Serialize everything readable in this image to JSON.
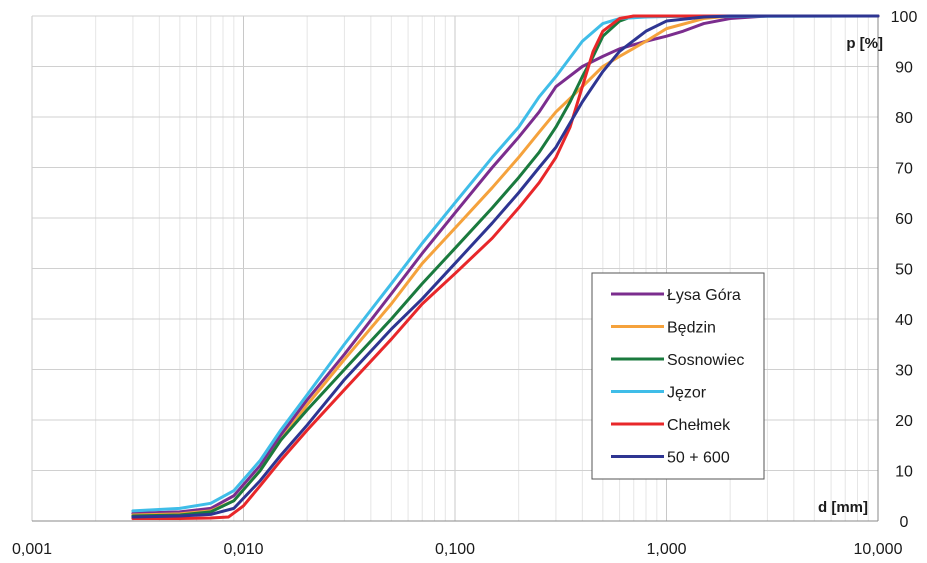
{
  "chart_data": {
    "type": "line",
    "x_scale": "log",
    "xlim": [
      0.001,
      10
    ],
    "ylim": [
      0,
      100
    ],
    "xlabel": "d [mm]",
    "ylabel": "p [%]",
    "x_ticks": [
      {
        "value": 0.001,
        "label": "0,001"
      },
      {
        "value": 0.01,
        "label": "0,010"
      },
      {
        "value": 0.1,
        "label": "0,100"
      },
      {
        "value": 1,
        "label": "1,000"
      },
      {
        "value": 10,
        "label": "10,000"
      }
    ],
    "y_ticks": [
      0,
      10,
      20,
      30,
      40,
      50,
      60,
      70,
      80,
      90,
      100
    ],
    "grid": {
      "y_major": true,
      "x_major": true,
      "x_minor": true
    },
    "legend_position": "right-lower",
    "series": [
      {
        "name": "Łysa Góra",
        "color": "#7b2d8e",
        "points": [
          [
            0.003,
            1.5
          ],
          [
            0.005,
            1.8
          ],
          [
            0.007,
            2.5
          ],
          [
            0.009,
            5
          ],
          [
            0.012,
            11
          ],
          [
            0.015,
            17
          ],
          [
            0.02,
            24
          ],
          [
            0.03,
            33
          ],
          [
            0.05,
            45
          ],
          [
            0.07,
            53
          ],
          [
            0.1,
            61
          ],
          [
            0.15,
            70
          ],
          [
            0.2,
            76
          ],
          [
            0.25,
            81
          ],
          [
            0.3,
            86
          ],
          [
            0.4,
            90
          ],
          [
            0.5,
            92
          ],
          [
            0.6,
            93.5
          ],
          [
            0.8,
            95
          ],
          [
            1.0,
            96
          ],
          [
            1.2,
            97
          ],
          [
            1.5,
            98.5
          ],
          [
            2.0,
            99.5
          ],
          [
            3.0,
            100
          ],
          [
            10,
            100
          ]
        ]
      },
      {
        "name": "Będzin",
        "color": "#f5a23c",
        "points": [
          [
            0.003,
            1.2
          ],
          [
            0.005,
            1.4
          ],
          [
            0.007,
            2
          ],
          [
            0.009,
            4
          ],
          [
            0.012,
            10
          ],
          [
            0.015,
            16
          ],
          [
            0.02,
            23
          ],
          [
            0.03,
            32
          ],
          [
            0.05,
            43
          ],
          [
            0.07,
            51
          ],
          [
            0.1,
            58
          ],
          [
            0.15,
            66
          ],
          [
            0.2,
            72
          ],
          [
            0.25,
            77
          ],
          [
            0.3,
            81
          ],
          [
            0.4,
            86
          ],
          [
            0.5,
            90
          ],
          [
            0.6,
            92
          ],
          [
            0.8,
            95
          ],
          [
            1.0,
            97.5
          ],
          [
            1.5,
            99.5
          ],
          [
            2.0,
            100
          ],
          [
            10,
            100
          ]
        ]
      },
      {
        "name": "Sosnowiec",
        "color": "#1a7a3e",
        "points": [
          [
            0.003,
            1
          ],
          [
            0.005,
            1.2
          ],
          [
            0.007,
            1.8
          ],
          [
            0.009,
            4
          ],
          [
            0.012,
            10
          ],
          [
            0.015,
            16
          ],
          [
            0.02,
            22
          ],
          [
            0.03,
            30
          ],
          [
            0.05,
            40
          ],
          [
            0.07,
            47
          ],
          [
            0.1,
            54
          ],
          [
            0.15,
            62
          ],
          [
            0.2,
            68
          ],
          [
            0.25,
            73
          ],
          [
            0.3,
            78
          ],
          [
            0.35,
            83
          ],
          [
            0.4,
            88
          ],
          [
            0.45,
            92
          ],
          [
            0.5,
            96
          ],
          [
            0.6,
            99
          ],
          [
            0.7,
            100
          ],
          [
            10,
            100
          ]
        ]
      },
      {
        "name": "Jęzor",
        "color": "#3fbde8",
        "points": [
          [
            0.003,
            2
          ],
          [
            0.005,
            2.5
          ],
          [
            0.007,
            3.5
          ],
          [
            0.009,
            6
          ],
          [
            0.012,
            12
          ],
          [
            0.015,
            18
          ],
          [
            0.02,
            25
          ],
          [
            0.03,
            35
          ],
          [
            0.05,
            47
          ],
          [
            0.07,
            55
          ],
          [
            0.1,
            63
          ],
          [
            0.15,
            72
          ],
          [
            0.2,
            78
          ],
          [
            0.25,
            84
          ],
          [
            0.3,
            88
          ],
          [
            0.4,
            95
          ],
          [
            0.5,
            98.5
          ],
          [
            0.6,
            99.5
          ],
          [
            0.8,
            99.8
          ],
          [
            1.0,
            99.9
          ],
          [
            10,
            100
          ]
        ]
      },
      {
        "name": "Chełmek",
        "color": "#e8272a",
        "points": [
          [
            0.003,
            0.5
          ],
          [
            0.005,
            0.5
          ],
          [
            0.007,
            0.6
          ],
          [
            0.0085,
            0.8
          ],
          [
            0.01,
            3
          ],
          [
            0.012,
            7
          ],
          [
            0.015,
            12
          ],
          [
            0.02,
            18
          ],
          [
            0.03,
            26
          ],
          [
            0.05,
            36
          ],
          [
            0.07,
            43
          ],
          [
            0.1,
            49
          ],
          [
            0.15,
            56
          ],
          [
            0.2,
            62
          ],
          [
            0.25,
            67
          ],
          [
            0.3,
            72
          ],
          [
            0.35,
            78
          ],
          [
            0.4,
            86
          ],
          [
            0.45,
            93
          ],
          [
            0.5,
            97
          ],
          [
            0.6,
            99.5
          ],
          [
            0.7,
            100
          ],
          [
            10,
            100
          ]
        ]
      },
      {
        "name": "50 + 600",
        "color": "#2e3592",
        "points": [
          [
            0.003,
            0.8
          ],
          [
            0.005,
            1
          ],
          [
            0.007,
            1.3
          ],
          [
            0.009,
            2.5
          ],
          [
            0.012,
            8
          ],
          [
            0.015,
            13
          ],
          [
            0.02,
            19
          ],
          [
            0.03,
            28
          ],
          [
            0.05,
            38
          ],
          [
            0.07,
            44
          ],
          [
            0.1,
            51
          ],
          [
            0.15,
            59
          ],
          [
            0.2,
            65
          ],
          [
            0.25,
            70
          ],
          [
            0.3,
            74
          ],
          [
            0.4,
            83
          ],
          [
            0.5,
            89
          ],
          [
            0.6,
            93
          ],
          [
            0.8,
            97
          ],
          [
            1.0,
            99
          ],
          [
            1.5,
            99.8
          ],
          [
            2.0,
            100
          ],
          [
            10,
            100
          ]
        ]
      }
    ]
  }
}
